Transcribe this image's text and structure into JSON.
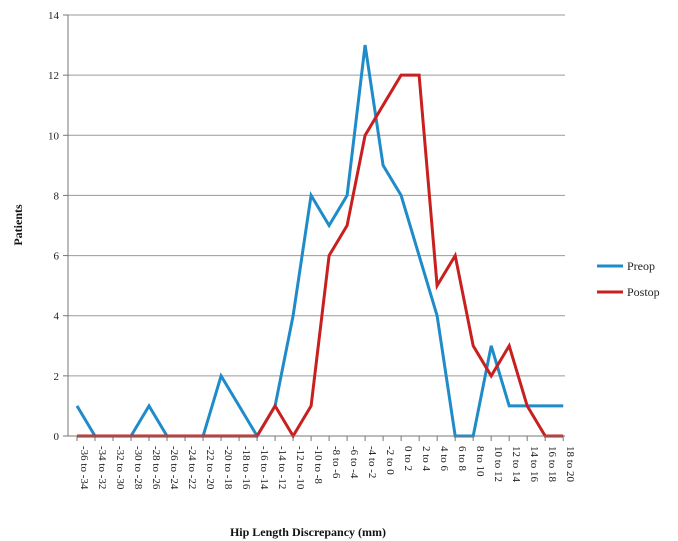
{
  "chart_data": {
    "type": "line",
    "title": "",
    "xlabel": "Hip Length Discrepancy (mm)",
    "ylabel": "Patients",
    "ylim": [
      0,
      14
    ],
    "yticks": [
      0,
      2,
      4,
      6,
      8,
      10,
      12,
      14
    ],
    "grid": "horizontal",
    "legend_position": "right",
    "categories": [
      "-36 to -34",
      "-34 to -32",
      "-32 to -30",
      "-30 to -28",
      "-28 to -26",
      "-26 to -24",
      "-24 to -22",
      "-22 to -20",
      "-20 to -18",
      "-18 to -16",
      "-16 to -14",
      "-14 to -12",
      "-12 to -10",
      "-10 to -8",
      "-8 to -6",
      "-6 to -4",
      "-4 to -2",
      "-2 to 0",
      "0 to 2",
      "2 to 4",
      "4 to 6",
      "6 to 8",
      "8 to 10",
      "10 to 12",
      "12 to 14",
      "14 to 16",
      "16 to 18",
      "18 to 20"
    ],
    "series": [
      {
        "name": "Preop",
        "color": "#1f8bc9",
        "values": [
          1,
          0,
          0,
          0,
          1,
          0,
          0,
          0,
          2,
          1,
          0,
          1,
          4,
          8,
          7,
          8,
          13,
          9,
          8,
          6,
          4,
          0,
          0,
          3,
          1,
          1,
          1,
          1
        ]
      },
      {
        "name": "Postop",
        "color": "#c8201f",
        "values": [
          0,
          0,
          0,
          0,
          0,
          0,
          0,
          0,
          0,
          0,
          0,
          1,
          0,
          1,
          6,
          7,
          10,
          11,
          12,
          12,
          5,
          6,
          3,
          2,
          3,
          1,
          0,
          0
        ]
      }
    ]
  }
}
